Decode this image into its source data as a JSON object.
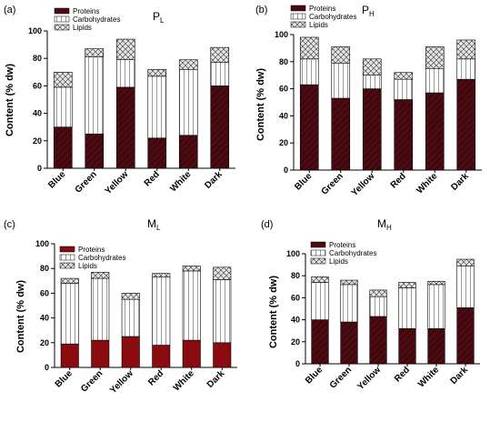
{
  "colors": {
    "dark_proteins": "#4b0b12",
    "bright_proteins": "#8a0b10",
    "hatch_dark": "#2a0004",
    "carb_fill": "#ffffff",
    "lipid_fill": "#d8d8d8"
  },
  "chart_data": [
    {
      "type": "bar",
      "stacked": true,
      "panel_label": "(a)",
      "title": "P",
      "title_sub": "L",
      "ylabel": "Content (% dw)",
      "ylim": [
        0,
        100
      ],
      "yticks": [
        "0",
        "20",
        "40",
        "60",
        "80",
        "100"
      ],
      "categories": [
        "Blue",
        "Green",
        "Yellow",
        "Red",
        "White",
        "Dark"
      ],
      "proteins_style": "dark",
      "legend_position": "top-left",
      "series": [
        {
          "name": "Proteins",
          "values": [
            30,
            25,
            59,
            22,
            24,
            60
          ]
        },
        {
          "name": "Carbohydrates",
          "values": [
            29,
            56,
            20,
            45,
            48,
            17
          ]
        },
        {
          "name": "Lipids",
          "values": [
            11,
            6,
            15,
            5,
            7,
            11
          ]
        }
      ]
    },
    {
      "type": "bar",
      "stacked": true,
      "panel_label": "(b)",
      "title": "P",
      "title_sub": "H",
      "ylabel": "Content (% dw)",
      "ylim": [
        0,
        100
      ],
      "yticks": [
        "0",
        "20",
        "40",
        "60",
        "80",
        "100"
      ],
      "categories": [
        "Blue",
        "Green",
        "Yellow",
        "Red",
        "White",
        "Dark"
      ],
      "proteins_style": "dark",
      "legend_position": "top-left",
      "series": [
        {
          "name": "Proteins",
          "values": [
            63,
            53,
            60,
            52,
            57,
            67
          ]
        },
        {
          "name": "Carbohydrates",
          "values": [
            19,
            26,
            10,
            15,
            18,
            15
          ]
        },
        {
          "name": "Lipids",
          "values": [
            16,
            12,
            12,
            5,
            16,
            14
          ]
        }
      ]
    },
    {
      "type": "bar",
      "stacked": true,
      "panel_label": "(c)",
      "title": "M",
      "title_sub": "L",
      "ylabel": "Content (% dw)",
      "ylim": [
        0,
        100
      ],
      "yticks": [
        "0",
        "20",
        "40",
        "60",
        "80",
        "100"
      ],
      "categories": [
        "Blue",
        "Green",
        "Yellow",
        "Red",
        "White",
        "Dark"
      ],
      "proteins_style": "bright",
      "legend_position": "top-left",
      "series": [
        {
          "name": "Proteins",
          "values": [
            19,
            22,
            25,
            18,
            22,
            20
          ]
        },
        {
          "name": "Carbohydrates",
          "values": [
            49,
            50,
            30,
            55,
            56,
            51
          ]
        },
        {
          "name": "Lipids",
          "values": [
            4,
            5,
            5,
            3,
            4,
            10
          ]
        }
      ]
    },
    {
      "type": "bar",
      "stacked": true,
      "panel_label": "(d)",
      "title": "M",
      "title_sub": "H",
      "ylabel": "Content (% dw)",
      "ylim": [
        0,
        100
      ],
      "yticks": [
        "0",
        "20",
        "40",
        "60",
        "80",
        "100"
      ],
      "categories": [
        "Blue",
        "Green",
        "Yellow",
        "Red",
        "White",
        "Dark"
      ],
      "proteins_style": "dark",
      "legend_position": "top-left",
      "series": [
        {
          "name": "Proteins",
          "values": [
            40,
            38,
            43,
            32,
            32,
            51
          ]
        },
        {
          "name": "Carbohydrates",
          "values": [
            34,
            34,
            18,
            37,
            40,
            38
          ]
        },
        {
          "name": "Lipids",
          "values": [
            5,
            4,
            6,
            5,
            3,
            6
          ]
        }
      ]
    }
  ]
}
